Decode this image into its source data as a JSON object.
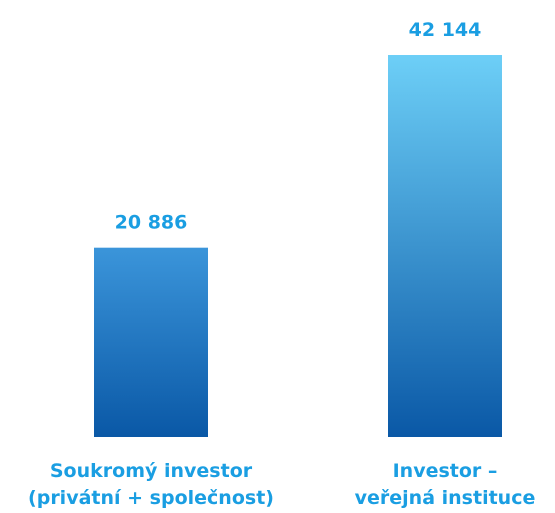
{
  "chart_data": {
    "type": "bar",
    "categories": [
      [
        "Soukromý investor",
        "(privátní + společnost)"
      ],
      [
        "Investor –",
        "veřejná instituce"
      ]
    ],
    "values": [
      20886,
      42144
    ],
    "value_labels": [
      "20 886",
      "42 144"
    ],
    "colors": [
      [
        "#3b95da",
        "#0a58a6"
      ],
      [
        "#6dcff7",
        "#0a58a6"
      ]
    ],
    "label_color": "#1a9ee2"
  }
}
